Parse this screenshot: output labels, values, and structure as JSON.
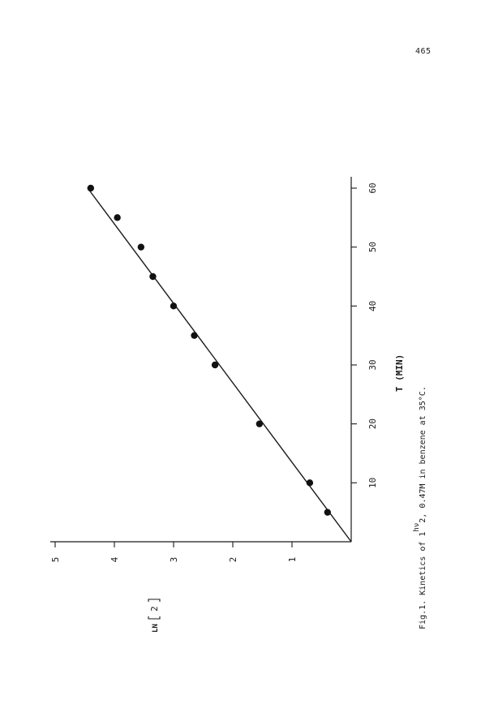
{
  "page": {
    "number": "465"
  },
  "chart_data": {
    "type": "scatter",
    "orientation": "rotated-90-ccw",
    "xlabel": "T (MIN)",
    "ylabel_prefix": "LN",
    "ylabel_bracket": "2",
    "xlim": [
      0,
      60
    ],
    "ylim": [
      0,
      5
    ],
    "xticks": [
      10,
      20,
      30,
      40,
      50,
      60
    ],
    "yticks": [
      1,
      2,
      3,
      4,
      5
    ],
    "series": [
      {
        "points": [
          {
            "x": 5,
            "y": 0.4
          },
          {
            "x": 10,
            "y": 0.7
          },
          {
            "x": 20,
            "y": 1.55
          },
          {
            "x": 30,
            "y": 2.3
          },
          {
            "x": 35,
            "y": 2.65
          },
          {
            "x": 40,
            "y": 3.0
          },
          {
            "x": 45,
            "y": 3.35
          },
          {
            "x": 50,
            "y": 3.55
          },
          {
            "x": 55,
            "y": 3.95
          },
          {
            "x": 60,
            "y": 4.4
          }
        ]
      }
    ],
    "fit_line": {
      "x": [
        0,
        60
      ],
      "y": [
        0,
        4.45
      ]
    },
    "grid": false,
    "legend": false,
    "marker_color": "#111111",
    "line_color": "#1a1a1a"
  },
  "caption": {
    "prefix": "Fig.1. Kinetics of ",
    "compound": "1",
    "arrow_label": "hν",
    "product": "2",
    "rest": ", 0.47M in benzene at 35°C."
  }
}
